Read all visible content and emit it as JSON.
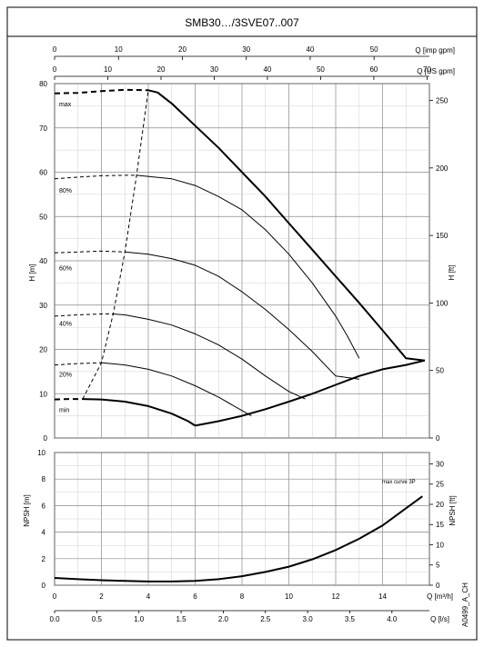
{
  "title": "SMB30…/3SVE07..007",
  "side_code": "A0499_A_CH",
  "top_axes": {
    "imp": {
      "label": "Q [imp gpm]",
      "ticks": [
        0,
        10,
        20,
        30,
        40,
        50
      ]
    },
    "us": {
      "label": "Q [US gpm]",
      "ticks": [
        0,
        10,
        20,
        30,
        40,
        50,
        60,
        70
      ]
    }
  },
  "bottom_axes": {
    "m3h": {
      "label": "Q [m³/h]",
      "ticks": [
        "0",
        "2",
        "4",
        "6",
        "8",
        "10",
        "12",
        "14"
      ]
    },
    "ls": {
      "label": "Q [l/s]",
      "ticks": [
        "0.0",
        "0.5",
        "1.0",
        "1.5",
        "2.0",
        "2.5",
        "3.0",
        "3.5",
        "4.0"
      ]
    }
  },
  "chart_data": [
    {
      "type": "line",
      "id": "head",
      "xlabel": "Q [m³/h]",
      "ylabel": "H [m]",
      "ylabel_right": "H [ft]",
      "xlim": [
        0,
        16
      ],
      "ylim": [
        0,
        80
      ],
      "yticks_left": [
        0,
        10,
        20,
        30,
        40,
        50,
        60,
        70,
        80
      ],
      "yticks_right": [
        0,
        50,
        100,
        150,
        200,
        250
      ],
      "grid": true,
      "speed_labels": [
        "max",
        "80%",
        "60%",
        "40%",
        "20%",
        "min"
      ],
      "series": [
        {
          "name": "max",
          "style": "solid-bold",
          "x": [
            4.0,
            4.4,
            5.0,
            6.0,
            7.0,
            8.0,
            9.0,
            10.0,
            11.0,
            12.0,
            13.0,
            14.0,
            15.0,
            15.8
          ],
          "y": [
            78.5,
            78.0,
            75.5,
            70.5,
            65.5,
            60.0,
            54.5,
            48.5,
            42.5,
            36.5,
            30.5,
            24.3,
            18.0,
            17.5
          ]
        },
        {
          "name": "80%",
          "style": "solid",
          "x": [
            3.5,
            5.0,
            6.0,
            7.0,
            8.0,
            9.0,
            10.0,
            11.0,
            12.0,
            12.5,
            13.0
          ],
          "y": [
            59.3,
            58.5,
            57.0,
            54.5,
            51.5,
            47.0,
            41.5,
            35.0,
            27.5,
            23.0,
            18.0
          ]
        },
        {
          "name": "60%",
          "style": "solid",
          "x": [
            3.0,
            4.0,
            5.0,
            6.0,
            7.0,
            8.0,
            9.0,
            10.0,
            11.0,
            12.0,
            13.0
          ],
          "y": [
            42.0,
            41.5,
            40.5,
            39.0,
            36.5,
            33.0,
            29.0,
            24.5,
            19.5,
            14.0,
            13.3
          ]
        },
        {
          "name": "40%",
          "style": "solid",
          "x": [
            2.5,
            3.0,
            4.0,
            5.0,
            6.0,
            7.0,
            8.0,
            9.0,
            10.0,
            10.7
          ],
          "y": [
            28.0,
            27.8,
            26.8,
            25.5,
            23.5,
            21.0,
            17.8,
            14.0,
            10.5,
            8.8
          ]
        },
        {
          "name": "20%",
          "style": "solid",
          "x": [
            2.0,
            3.0,
            4.0,
            5.0,
            6.0,
            7.0,
            8.0,
            8.4
          ],
          "y": [
            17.0,
            16.5,
            15.5,
            14.0,
            11.8,
            9.2,
            6.2,
            5.0
          ]
        },
        {
          "name": "min",
          "style": "solid-bold",
          "x": [
            1.2,
            2.0,
            3.0,
            4.0,
            5.0,
            5.7,
            6.0
          ],
          "y": [
            8.8,
            8.7,
            8.2,
            7.2,
            5.5,
            3.8,
            2.8
          ]
        },
        {
          "name": "system",
          "style": "solid-bold",
          "x": [
            6.0,
            7.0,
            8.0,
            9.0,
            10.0,
            11.0,
            12.0,
            13.0,
            14.0,
            15.0,
            15.8
          ],
          "y": [
            2.8,
            3.8,
            5.0,
            6.5,
            8.2,
            10.0,
            12.0,
            14.0,
            15.5,
            16.5,
            17.5
          ]
        },
        {
          "name": "max-low-flow",
          "style": "dashed-bold",
          "x": [
            0,
            1.0,
            2.0,
            3.0,
            4.0
          ],
          "y": [
            77.8,
            77.9,
            78.3,
            78.6,
            78.5
          ]
        },
        {
          "name": "80%-low-flow",
          "style": "dashed",
          "x": [
            0,
            1.0,
            2.0,
            3.0,
            3.5
          ],
          "y": [
            58.5,
            58.9,
            59.2,
            59.3,
            59.3
          ]
        },
        {
          "name": "60%-low-flow",
          "style": "dashed",
          "x": [
            0,
            1.0,
            2.0,
            3.0
          ],
          "y": [
            41.8,
            42.0,
            42.2,
            42.0
          ]
        },
        {
          "name": "40%-low-flow",
          "style": "dashed",
          "x": [
            0,
            1.0,
            2.0,
            2.5
          ],
          "y": [
            27.5,
            27.8,
            28.0,
            28.0
          ]
        },
        {
          "name": "20%-low-flow",
          "style": "dashed",
          "x": [
            0,
            1.0,
            2.0
          ],
          "y": [
            16.5,
            16.8,
            17.0
          ]
        },
        {
          "name": "min-low-flow",
          "style": "dashed-bold",
          "x": [
            0,
            0.6,
            1.2
          ],
          "y": [
            8.7,
            8.8,
            8.8
          ]
        },
        {
          "name": "min-flow-limit",
          "style": "dashed",
          "x": [
            1.2,
            2.0,
            2.5,
            3.0,
            3.5,
            4.0
          ],
          "y": [
            8.8,
            17.0,
            28.0,
            42.0,
            59.3,
            78.5
          ]
        }
      ]
    },
    {
      "type": "line",
      "id": "npsh",
      "xlabel": "Q [m³/h]",
      "ylabel": "NPSH [m]",
      "ylabel_right": "NPSH [ft]",
      "xlim": [
        0,
        16
      ],
      "ylim": [
        0,
        10
      ],
      "yticks_left": [
        0,
        2,
        4,
        6,
        8,
        10
      ],
      "yticks_right": [
        0,
        5,
        10,
        15,
        20,
        25,
        30
      ],
      "grid": true,
      "annotation": "max curve 3P",
      "series": [
        {
          "name": "max curve 3P",
          "x": [
            0,
            1,
            2,
            3,
            4,
            5,
            6,
            7,
            8,
            9,
            10,
            11,
            12,
            13,
            14,
            15,
            15.7
          ],
          "y": [
            0.55,
            0.45,
            0.38,
            0.32,
            0.28,
            0.28,
            0.32,
            0.45,
            0.68,
            1.0,
            1.4,
            1.95,
            2.65,
            3.5,
            4.5,
            5.8,
            6.7
          ]
        }
      ]
    }
  ]
}
